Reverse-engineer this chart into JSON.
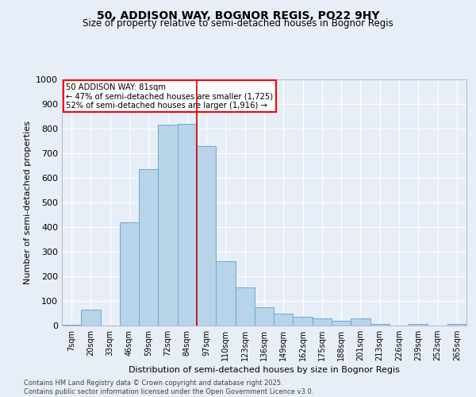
{
  "title_line1": "50, ADDISON WAY, BOGNOR REGIS, PO22 9HY",
  "title_line2": "Size of property relative to semi-detached houses in Bognor Regis",
  "xlabel": "Distribution of semi-detached houses by size in Bognor Regis",
  "ylabel": "Number of semi-detached properties",
  "categories": [
    "7sqm",
    "20sqm",
    "33sqm",
    "46sqm",
    "59sqm",
    "72sqm",
    "84sqm",
    "97sqm",
    "110sqm",
    "123sqm",
    "136sqm",
    "149sqm",
    "162sqm",
    "175sqm",
    "188sqm",
    "201sqm",
    "213sqm",
    "226sqm",
    "239sqm",
    "252sqm",
    "265sqm"
  ],
  "values": [
    2,
    65,
    0,
    420,
    635,
    815,
    820,
    730,
    260,
    155,
    75,
    50,
    35,
    30,
    20,
    30,
    5,
    0,
    5,
    0,
    5
  ],
  "bar_color": "#b8d4e8",
  "bar_edge_color": "#6aaad4",
  "annotation_title": "50 ADDISON WAY: 81sqm",
  "annotation_line1": "← 47% of semi-detached houses are smaller (1,725)",
  "annotation_line2": "52% of semi-detached houses are larger (1,916) →",
  "footer_line1": "Contains HM Land Registry data © Crown copyright and database right 2025.",
  "footer_line2": "Contains public sector information licensed under the Open Government Licence v3.0.",
  "ylim": [
    0,
    1000
  ],
  "yticks": [
    0,
    100,
    200,
    300,
    400,
    500,
    600,
    700,
    800,
    900,
    1000
  ],
  "bg_color": "#e8eef8",
  "plot_bg_color": "#e8eef8",
  "grid_color": "#ffffff",
  "red_line_color": "#cc0000",
  "red_line_x": 6.5
}
